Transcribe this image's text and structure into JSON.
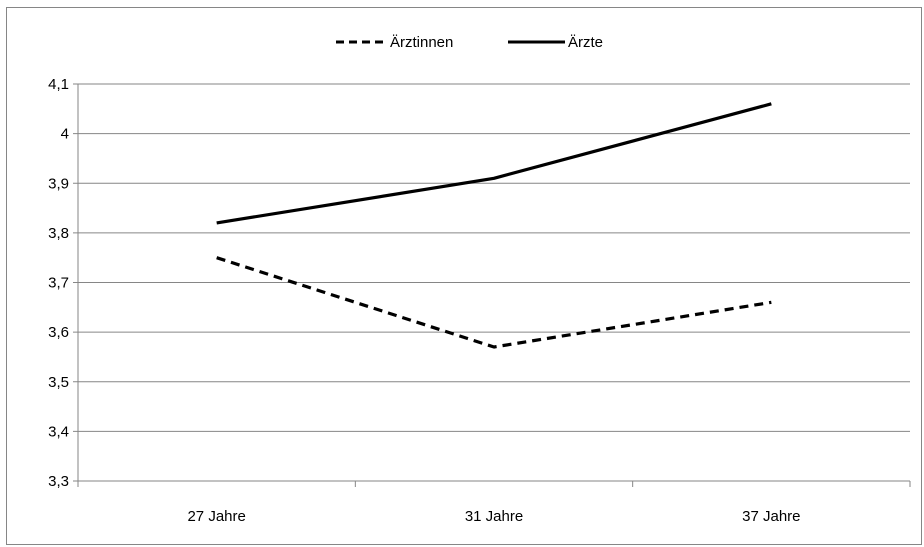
{
  "chart_data": {
    "type": "line",
    "title": "",
    "xlabel": "",
    "ylabel": "",
    "categories": [
      "27 Jahre",
      "31 Jahre",
      "37 Jahre"
    ],
    "series": [
      {
        "name": "Ärztinnen",
        "values": [
          3.75,
          3.57,
          3.66
        ],
        "line_style": "dashed",
        "color": "#000000"
      },
      {
        "name": "Ärzte",
        "values": [
          3.82,
          3.91,
          4.06
        ],
        "line_style": "solid",
        "color": "#000000"
      }
    ],
    "ylim": [
      3.3,
      4.1
    ],
    "y_ticks": [
      {
        "value": 4.1,
        "label": "4,1"
      },
      {
        "value": 4.0,
        "label": "4"
      },
      {
        "value": 3.9,
        "label": "3,9"
      },
      {
        "value": 3.8,
        "label": "3,8"
      },
      {
        "value": 3.7,
        "label": "3,7"
      },
      {
        "value": 3.6,
        "label": "3,6"
      },
      {
        "value": 3.5,
        "label": "3,5"
      },
      {
        "value": 3.4,
        "label": "3,4"
      },
      {
        "value": 3.3,
        "label": "3,3"
      }
    ],
    "grid": true,
    "legend_position": "top"
  }
}
